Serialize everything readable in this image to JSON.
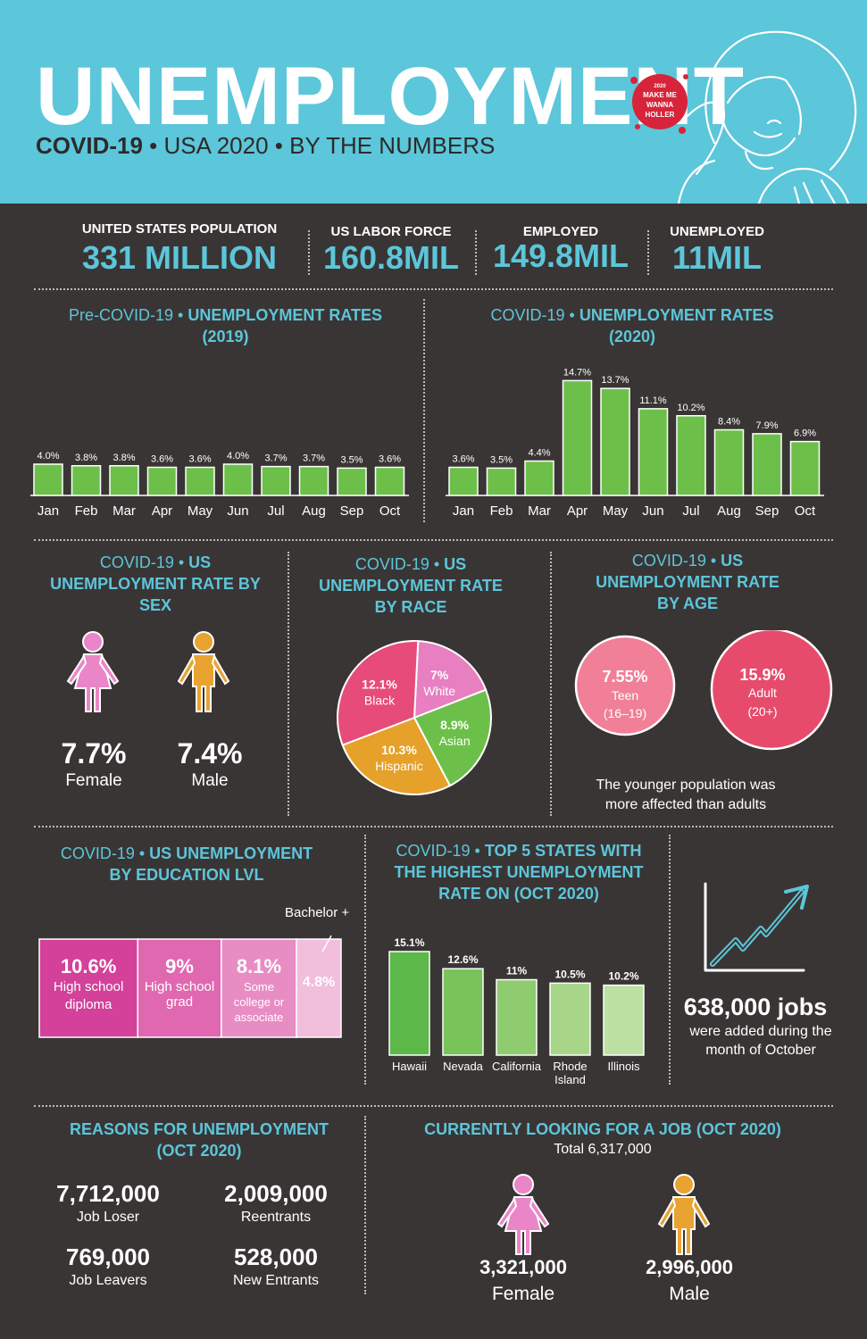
{
  "header": {
    "title": "UNEMPLOYMENT",
    "subtitle_bold": "COVID-19",
    "subtitle_rest": " • USA 2020 • BY THE NUMBERS",
    "badge_lines": [
      "2020",
      "MAKE ME",
      "WANNA",
      "HOLLER"
    ]
  },
  "stats": [
    {
      "label": "UNITED STATES POPULATION",
      "value": "331 MILLION"
    },
    {
      "label": "US LABOR FORCE",
      "value": "160.8MIL"
    },
    {
      "label": "EMPLOYED",
      "value": "149.8MIL"
    },
    {
      "label": "UNEMPLOYED",
      "value": "11MIL"
    }
  ],
  "pre_covid": {
    "title_a": "Pre-COVID-19 • ",
    "title_b": "UNEMPLOYMENT RATES",
    "title_c": "(2019)"
  },
  "covid": {
    "title_a": "COVID-19 • ",
    "title_b": "UNEMPLOYMENT RATES",
    "title_c": "(2020)"
  },
  "sex": {
    "title_a": "COVID-19 • ",
    "title_b": "US UNEMPLOYMENT RATE BY SEX",
    "female_value": "7.7%",
    "female_label": "Female",
    "male_value": "7.4%",
    "male_label": "Male"
  },
  "race": {
    "title_a": "COVID-19 • ",
    "title_b": "US UNEMPLOYMENT RATE BY RACE"
  },
  "age": {
    "title_a": "COVID-19 • ",
    "title_b": "US UNEMPLOYMENT RATE BY AGE",
    "teen_value": "7.55%",
    "teen_label": "Teen",
    "teen_range": "(16–19)",
    "adult_value": "15.9%",
    "adult_label": "Adult",
    "adult_range": "(20+)",
    "note_line1": "The younger population was",
    "note_line2": "more affected than adults"
  },
  "education": {
    "title_a": "COVID-19 • ",
    "title_b": "US UNEMPLOYMENT",
    "title_c": "BY EDUCATION LVL",
    "callout": "Bachelor +"
  },
  "states": {
    "title_a": "COVID-19 • ",
    "title_b": "TOP 5 STATES WITH",
    "title_c": "THE HIGHEST UNEMPLOYMENT",
    "title_d": "RATE ON (OCT 2020)"
  },
  "jobs": {
    "value": "638,000 jobs",
    "line1": "were added during the",
    "line2": "month of October"
  },
  "reasons": {
    "title_a": "REASONS FOR UNEMPLOYMENT",
    "title_b": "(OCT 2020)",
    "items": [
      {
        "value": "7,712,000",
        "label": "Job Loser"
      },
      {
        "value": "2,009,000",
        "label": "Reentrants"
      },
      {
        "value": "769,000",
        "label": "Job Leavers"
      },
      {
        "value": "528,000",
        "label": "New Entrants"
      }
    ]
  },
  "looking": {
    "title": "CURRENTLY LOOKING FOR A JOB (OCT 2020)",
    "total": "Total 6,317,000",
    "female_value": "3,321,000",
    "female_label": "Female",
    "male_value": "2,996,000",
    "male_label": "Male"
  },
  "colors": {
    "teal": "#5cc6da",
    "dark": "#3a3535",
    "green": "#6cc04a",
    "pink": "#e74b7a",
    "orange": "#e6a12a",
    "female": "#ea86c7",
    "male": "#e8a331"
  },
  "chart_data": [
    {
      "type": "bar",
      "title": "Pre-COVID-19 • UNEMPLOYMENT RATES (2019)",
      "categories": [
        "Jan",
        "Feb",
        "Mar",
        "Apr",
        "May",
        "Jun",
        "Jul",
        "Aug",
        "Sep",
        "Oct"
      ],
      "values": [
        4.0,
        3.8,
        3.8,
        3.6,
        3.6,
        4.0,
        3.7,
        3.7,
        3.5,
        3.6
      ],
      "labels": [
        "4.0%",
        "3.8%",
        "3.8%",
        "3.6%",
        "3.6%",
        "4.0%",
        "3.7%",
        "3.7%",
        "3.5%",
        "3.6%"
      ],
      "ylim": [
        0,
        16
      ]
    },
    {
      "type": "bar",
      "title": "COVID-19 • UNEMPLOYMENT RATES (2020)",
      "categories": [
        "Jan",
        "Feb",
        "Mar",
        "Apr",
        "May",
        "Jun",
        "Jul",
        "Aug",
        "Sep",
        "Oct"
      ],
      "values": [
        3.6,
        3.5,
        4.4,
        14.7,
        13.7,
        11.1,
        10.2,
        8.4,
        7.9,
        6.9
      ],
      "labels": [
        "3.6%",
        "3.5%",
        "4.4%",
        "14.7%",
        "13.7%",
        "11.1%",
        "10.2%",
        "8.4%",
        "7.9%",
        "6.9%"
      ],
      "ylim": [
        0,
        16
      ]
    },
    {
      "type": "pie",
      "title": "COVID-19 • US UNEMPLOYMENT RATE BY RACE",
      "slices": [
        {
          "label": "White",
          "value": 7,
          "text": "7%",
          "color": "#e77fc0"
        },
        {
          "label": "Asian",
          "value": 8.9,
          "text": "8.9%",
          "color": "#6cc04a"
        },
        {
          "label": "Hispanic",
          "value": 10.3,
          "text": "10.3%",
          "color": "#e6a12a"
        },
        {
          "label": "Black",
          "value": 12.1,
          "text": "12.1%",
          "color": "#e74b7a"
        }
      ]
    },
    {
      "type": "bar",
      "title": "COVID-19 • US UNEMPLOYMENT BY EDUCATION LVL",
      "orientation": "horizontal-stacked",
      "segments": [
        {
          "label": "High school diploma",
          "value": 10.6,
          "text": "10.6%",
          "color": "#d3419a"
        },
        {
          "label": "High school grad",
          "value": 9,
          "text": "9%",
          "color": "#e068b0"
        },
        {
          "label": "Some college or associate",
          "value": 8.1,
          "text": "8.1%",
          "color": "#e88cc4"
        },
        {
          "label": "Bachelor +",
          "value": 4.8,
          "text": "4.8%",
          "color": "#f1bedc"
        }
      ]
    },
    {
      "type": "bar",
      "title": "COVID-19 • TOP 5 STATES WITH THE HIGHEST UNEMPLOYMENT RATE ON (OCT 2020)",
      "categories": [
        "Hawaii",
        "Nevada",
        "California",
        "Rhode Island",
        "Illinois"
      ],
      "values": [
        15.1,
        12.6,
        11,
        10.5,
        10.2
      ],
      "labels": [
        "15.1%",
        "12.6%",
        "11%",
        "10.5%",
        "10.2%"
      ],
      "colors": [
        "#5db84a",
        "#78c35a",
        "#8fcc70",
        "#a7d689",
        "#bde0a3"
      ],
      "ylim": [
        0,
        16
      ]
    }
  ]
}
